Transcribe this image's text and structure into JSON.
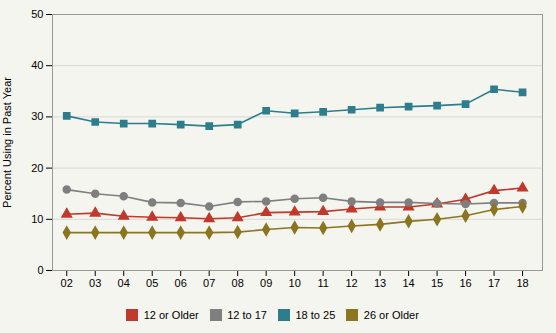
{
  "chart_data": {
    "type": "line",
    "x": [
      2002,
      2003,
      2004,
      2005,
      2006,
      2007,
      2008,
      2009,
      2010,
      2011,
      2012,
      2013,
      2014,
      2015,
      2016,
      2017,
      2018
    ],
    "series": [
      {
        "name": "12 or Older",
        "color": "#c0392b",
        "marker": "triangle",
        "values": [
          11.0,
          11.2,
          10.6,
          10.4,
          10.3,
          10.1,
          10.3,
          11.3,
          11.4,
          11.5,
          12.0,
          12.4,
          12.4,
          13.0,
          13.9,
          15.6,
          16.1
        ]
      },
      {
        "name": "12 to 17",
        "color": "#7f7f7f",
        "marker": "circle",
        "values": [
          15.8,
          15.0,
          14.5,
          13.3,
          13.2,
          12.5,
          13.4,
          13.5,
          14.0,
          14.2,
          13.5,
          13.3,
          13.3,
          13.1,
          13.0,
          13.2,
          13.2
        ]
      },
      {
        "name": "18 to 25",
        "color": "#2e7d8c",
        "marker": "square",
        "values": [
          30.2,
          29.0,
          28.7,
          28.7,
          28.5,
          28.2,
          28.5,
          31.2,
          30.7,
          31.0,
          31.4,
          31.8,
          32.0,
          32.2,
          32.5,
          35.4,
          34.8
        ]
      },
      {
        "name": "26 or Older",
        "color": "#8B7520",
        "marker": "diamond",
        "values": [
          7.4,
          7.4,
          7.4,
          7.4,
          7.4,
          7.4,
          7.5,
          8.0,
          8.4,
          8.3,
          8.7,
          9.0,
          9.6,
          10.0,
          10.7,
          11.9,
          12.5
        ]
      }
    ],
    "xlim": [
      2001.5,
      2018.7
    ],
    "xticks": [
      {
        "value": 2002,
        "label": "02"
      },
      {
        "value": 2003,
        "label": "03"
      },
      {
        "value": 2004,
        "label": "04"
      },
      {
        "value": 2005,
        "label": "05"
      },
      {
        "value": 2006,
        "label": "06"
      },
      {
        "value": 2007,
        "label": "07"
      },
      {
        "value": 2008,
        "label": "08"
      },
      {
        "value": 2009,
        "label": "09"
      },
      {
        "value": 2010,
        "label": "10"
      },
      {
        "value": 2011,
        "label": "11"
      },
      {
        "value": 2012,
        "label": "12"
      },
      {
        "value": 2013,
        "label": "13"
      },
      {
        "value": 2014,
        "label": "14"
      },
      {
        "value": 2015,
        "label": "15"
      },
      {
        "value": 2016,
        "label": "16"
      },
      {
        "value": 2017,
        "label": "17"
      },
      {
        "value": 2018,
        "label": "18"
      }
    ],
    "ylabel": "Percent Using in Past Year",
    "ylim": [
      0,
      50
    ],
    "yticks": [
      0,
      10,
      20,
      30,
      40,
      50
    ],
    "grid": true,
    "legend": "bottom"
  }
}
